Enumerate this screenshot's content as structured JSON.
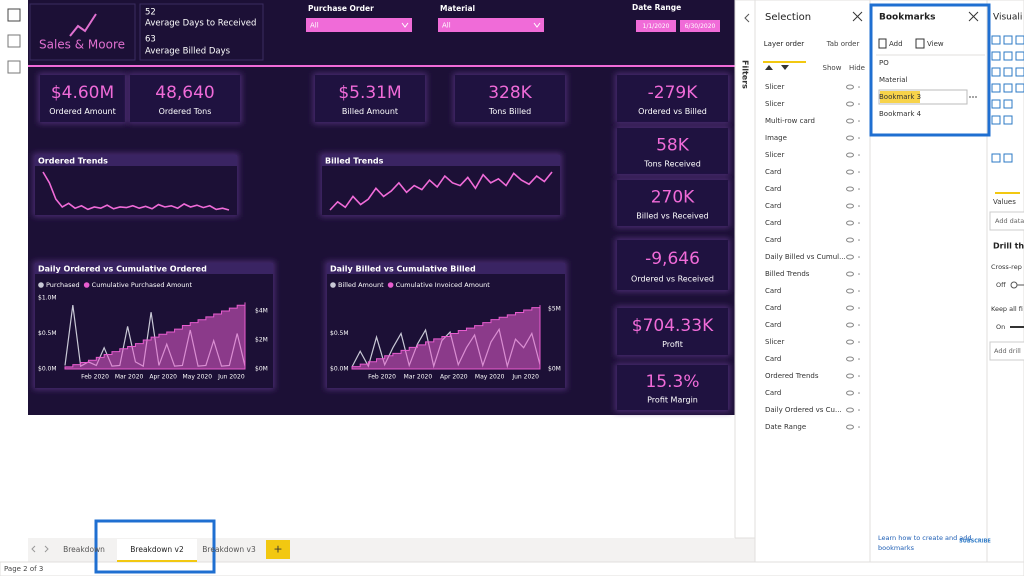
{
  "report": {
    "logo": "Sales & Moore",
    "header_stats": [
      {
        "value": "52",
        "label": "Average Days to Received"
      },
      {
        "value": "63",
        "label": "Average Billed Days"
      }
    ],
    "slicers": [
      {
        "title": "Purchase Order",
        "value": "All"
      },
      {
        "title": "Material",
        "value": "All"
      }
    ],
    "date_range": {
      "title": "Date Range",
      "start": "1/1/2020",
      "end": "6/30/2020"
    },
    "kpis": [
      {
        "value": "$4.60M",
        "label": "Ordered Amount"
      },
      {
        "value": "48,640",
        "label": "Ordered Tons"
      },
      {
        "value": "$5.31M",
        "label": "Billed Amount"
      },
      {
        "value": "328K",
        "label": "Tons Billed"
      },
      {
        "value": "-279K",
        "label": "Ordered vs Billed"
      },
      {
        "value": "58K",
        "label": "Tons Received"
      },
      {
        "value": "270K",
        "label": "Billed vs Received"
      },
      {
        "value": "-9,646",
        "label": "Ordered vs Received"
      },
      {
        "value": "$704.33K",
        "label": "Profit"
      },
      {
        "value": "15.3%",
        "label": "Profit Margin"
      }
    ],
    "trends": [
      {
        "type": "line",
        "title": "Ordered Trends",
        "color": "#f06bd8",
        "values": [
          80,
          62,
          35,
          22,
          28,
          20,
          24,
          18,
          22,
          20,
          25,
          19,
          22,
          21,
          24,
          20,
          23,
          19,
          26,
          22,
          24,
          20,
          27,
          22,
          25,
          21,
          24,
          18,
          20,
          17
        ]
      },
      {
        "type": "line",
        "title": "Billed Trends",
        "color": "#f06bd8",
        "values": [
          20,
          26,
          22,
          30,
          24,
          28,
          36,
          30,
          34,
          40,
          33,
          38,
          35,
          42,
          37,
          45,
          40,
          38,
          44,
          36,
          46,
          40,
          43,
          38,
          47,
          42,
          39,
          45,
          41,
          48
        ]
      }
    ],
    "charts": [
      {
        "type": "combo",
        "title": "Daily Ordered vs Cumulative Ordered",
        "series": [
          {
            "name": "Purchased",
            "color": "#c9c9d6",
            "axis": "y",
            "values": [
              50000,
              900000,
              40000,
              100000,
              50000,
              300000,
              40000,
              50000,
              600000,
              100000,
              40000,
              800000,
              50000,
              350000,
              40000,
              50000,
              550000,
              40000,
              50000,
              400000,
              40000,
              50000,
              500000,
              40000
            ]
          },
          {
            "name": "Cumulative Purchased Amount",
            "color": "#e85ccf",
            "axis": "y2",
            "values": [
              150000,
              300000,
              450000,
              600000,
              800000,
              1000000,
              1200000,
              1400000,
              1550000,
              1750000,
              2000000,
              2200000,
              2400000,
              2550000,
              2750000,
              3000000,
              3200000,
              3400000,
              3600000,
              3800000,
              4000000,
              4200000,
              4400000,
              4600000
            ]
          }
        ],
        "ylim": [
          0,
          1000000
        ],
        "yticks": [
          {
            "value": 1000000,
            "label": "$1.0M"
          },
          {
            "value": 500000,
            "label": "$0.5M"
          },
          {
            "value": 0,
            "label": "$0.0M"
          }
        ],
        "y2lim": [
          0,
          4900000
        ],
        "y2ticks": [
          {
            "value": 4000000,
            "label": "$4M"
          },
          {
            "value": 2000000,
            "label": "$2M"
          },
          {
            "value": 0,
            "label": "$0M"
          }
        ],
        "xticks": [
          "Feb 2020",
          "Mar 2020",
          "Apr 2020",
          "May 2020",
          "Jun 2020"
        ]
      },
      {
        "type": "combo",
        "title": "Daily Billed vs Cumulative Billed",
        "series": [
          {
            "name": "Billed Amount",
            "color": "#c9c9d6",
            "axis": "y",
            "values": [
              30000,
              250000,
              40000,
              450000,
              60000,
              300000,
              500000,
              50000,
              350000,
              550000,
              40000,
              400000,
              520000,
              60000,
              300000,
              480000,
              50000,
              380000,
              560000,
              40000,
              420000,
              300000,
              500000,
              60000
            ]
          },
          {
            "name": "Cumulative Invoiced Amount",
            "color": "#e85ccf",
            "axis": "y2",
            "values": [
              200000,
              400000,
              600000,
              850000,
              1100000,
              1300000,
              1550000,
              1800000,
              2000000,
              2250000,
              2500000,
              2700000,
              2950000,
              3200000,
              3400000,
              3600000,
              3850000,
              4100000,
              4300000,
              4500000,
              4700000,
              4900000,
              5100000,
              5310000
            ]
          }
        ],
        "ylim": [
          0,
          1000000
        ],
        "yticks": [
          {
            "value": 500000,
            "label": "$0.5M"
          },
          {
            "value": 0,
            "label": "$0.0M"
          }
        ],
        "y2lim": [
          0,
          5900000
        ],
        "y2ticks": [
          {
            "value": 5000000,
            "label": "$5M"
          },
          {
            "value": 0,
            "label": "$0M"
          }
        ],
        "xticks": [
          "Feb 2020",
          "Mar 2020",
          "Apr 2020",
          "May 2020",
          "Jun 2020"
        ]
      }
    ]
  },
  "filters_label": "Filters",
  "tabs": [
    "Breakdown",
    "Breakdown v2",
    "Breakdown v3"
  ],
  "add_tab": "+",
  "status": "Page 2 of 3",
  "selection": {
    "title": "Selection",
    "tabs": [
      "Layer order",
      "Tab order"
    ],
    "show": "Show",
    "hide": "Hide",
    "items": [
      "Slicer",
      "Slicer",
      "Multi-row card",
      "Image",
      "Slicer",
      "Card",
      "Card",
      "Card",
      "Card",
      "Card",
      "Daily Billed vs Cumul...",
      "Billed Trends",
      "Card",
      "Card",
      "Card",
      "Slicer",
      "Card",
      "Ordered Trends",
      "Card",
      "Daily Ordered vs Cu...",
      "Date Range"
    ]
  },
  "bookmarks": {
    "title": "Bookmarks",
    "add": "Add",
    "view": "View",
    "items": [
      "PO",
      "Material",
      "Bookmark 3",
      "Bookmark 4"
    ],
    "footer": [
      "Learn how to create and add",
      "bookmarks"
    ]
  },
  "watermark": "SUBSCRIBE",
  "visualizations": {
    "title": "Visuali",
    "values": "Values",
    "add_data": "Add data",
    "drill": "Drill th",
    "cross": "Cross-rep",
    "off": "Off",
    "keep": "Keep all fi",
    "on": "On",
    "add_drill": "Add drill"
  }
}
